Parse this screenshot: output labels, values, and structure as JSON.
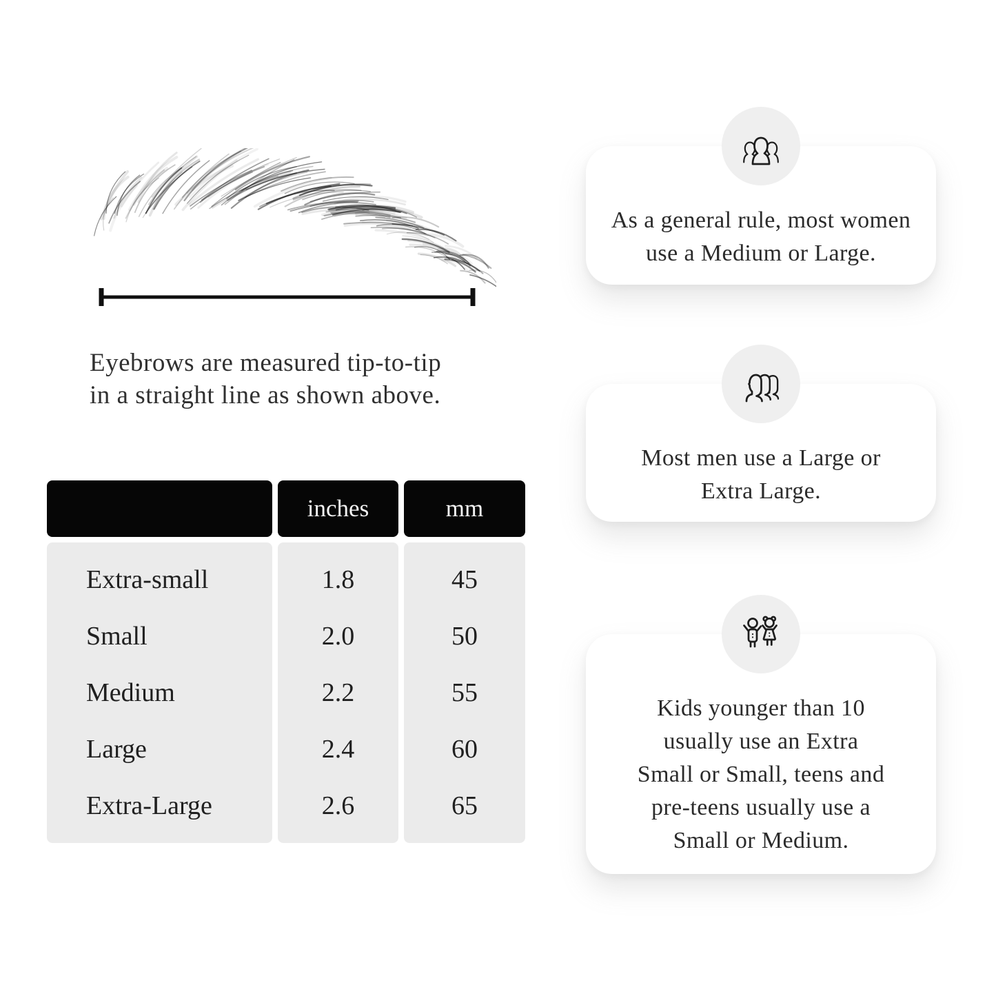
{
  "caption": {
    "line1": "Eyebrows are measured tip-to-tip",
    "line2": "in a straight line as shown above."
  },
  "table": {
    "headers": [
      "",
      "inches",
      "mm"
    ],
    "rows": [
      {
        "label": "Extra-small",
        "inches": "1.8",
        "mm": "45"
      },
      {
        "label": "Small",
        "inches": "2.0",
        "mm": "50"
      },
      {
        "label": "Medium",
        "inches": "2.2",
        "mm": "55"
      },
      {
        "label": "Large",
        "inches": "2.4",
        "mm": "60"
      },
      {
        "label": "Extra-Large",
        "inches": "2.6",
        "mm": "65"
      }
    ]
  },
  "cards": [
    {
      "icon": "women-group-icon",
      "lines": [
        "As a general rule, most women",
        "use a Medium or Large."
      ]
    },
    {
      "icon": "men-group-icon",
      "lines": [
        "Most men use a Large or",
        "Extra Large."
      ]
    },
    {
      "icon": "kids-icon",
      "lines": [
        "Kids younger than 10",
        "usually use an Extra",
        "Small or Small, teens and",
        "pre-teens usually use a",
        "Small or Medium."
      ]
    }
  ],
  "colors": {
    "page_bg": "#ffffff",
    "ink": "#1d1d1d",
    "text": "#2a2a2a",
    "table_header_bg": "#060606",
    "table_header_text": "#f4f4f4",
    "table_body_bg": "#ebebeb",
    "card_bg": "#ffffff",
    "circle_bg": "#efefef"
  }
}
